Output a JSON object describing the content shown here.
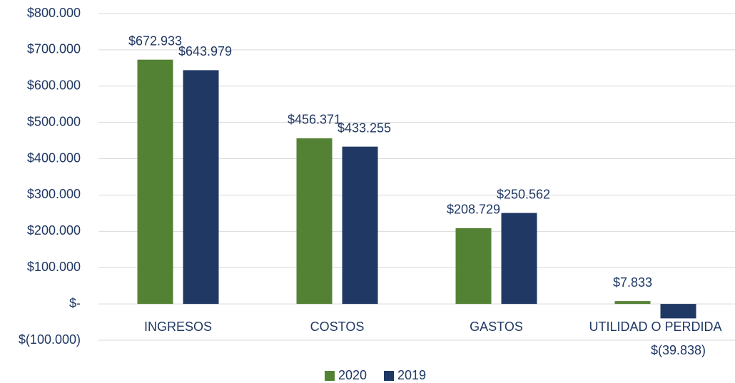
{
  "chart_data": {
    "type": "bar",
    "categories": [
      "INGRESOS",
      "COSTOS",
      "GASTOS",
      "UTILIDAD O PERDIDA"
    ],
    "series": [
      {
        "name": "2020",
        "color": "#548235",
        "values": [
          672933,
          456371,
          208729,
          7833
        ],
        "value_labels": [
          "$672.933",
          "$456.371",
          "$208.729",
          "$7.833"
        ]
      },
      {
        "name": "2019",
        "color": "#203864",
        "values": [
          643979,
          433255,
          250562,
          -39838
        ],
        "value_labels": [
          "$643.979",
          "$433.255",
          "$250.562",
          "$(39.838)"
        ]
      }
    ],
    "ylim": [
      -100000,
      800000
    ],
    "yticks": [
      {
        "value": -100000,
        "label": "$(100.000)"
      },
      {
        "value": 0,
        "label": "$-"
      },
      {
        "value": 100000,
        "label": "$100.000"
      },
      {
        "value": 200000,
        "label": "$200.000"
      },
      {
        "value": 300000,
        "label": "$300.000"
      },
      {
        "value": 400000,
        "label": "$400.000"
      },
      {
        "value": 500000,
        "label": "$500.000"
      },
      {
        "value": 600000,
        "label": "$600.000"
      },
      {
        "value": 700000,
        "label": "$700.000"
      },
      {
        "value": 800000,
        "label": "$800.000"
      }
    ],
    "grid": true,
    "legend": "bottom"
  }
}
